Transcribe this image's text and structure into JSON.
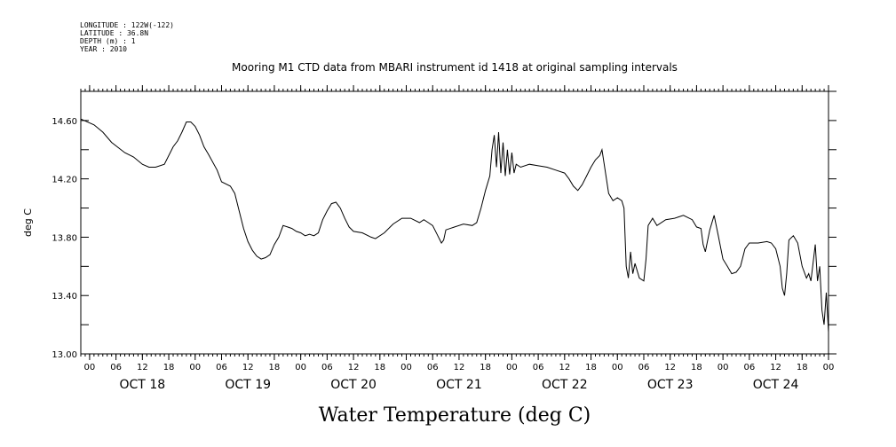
{
  "metadata": {
    "longitude": "LONGITUDE : 122W(-122)",
    "latitude": "LATITUDE : 36.8N",
    "depth": "DEPTH (m) : 1",
    "year": "YEAR : 2010"
  },
  "chart_data": {
    "type": "line",
    "title": "Mooring M1 CTD data from MBARI instrument id 1418 at original sampling intervals",
    "xlabel": "Water Temperature (deg C)",
    "ylabel": "deg C",
    "x_unit": "hours from OCT 18 00:00",
    "xlim": [
      -2,
      168
    ],
    "ylim": [
      13.0,
      14.8
    ],
    "y_ticks": [
      "13.00",
      "13.40",
      "13.80",
      "14.20",
      "14.60"
    ],
    "y_tick_values": [
      13.0,
      13.4,
      13.8,
      14.2,
      14.6
    ],
    "hour_tick_labels": [
      "00",
      "06",
      "12",
      "18"
    ],
    "day_labels": [
      "OCT 18",
      "OCT 19",
      "OCT 20",
      "OCT 21",
      "OCT 22",
      "OCT 23",
      "OCT 24"
    ],
    "grid": false,
    "series": [
      {
        "values": [
          [
            -2,
            14.61
          ],
          [
            1,
            14.57
          ],
          [
            3,
            14.52
          ],
          [
            5,
            14.45
          ],
          [
            8,
            14.38
          ],
          [
            10,
            14.35
          ],
          [
            12,
            14.3
          ],
          [
            13.5,
            14.28
          ],
          [
            15,
            14.28
          ],
          [
            17,
            14.3
          ],
          [
            19,
            14.42
          ],
          [
            20,
            14.46
          ],
          [
            21,
            14.52
          ],
          [
            22,
            14.59
          ],
          [
            23,
            14.59
          ],
          [
            24,
            14.56
          ],
          [
            25,
            14.5
          ],
          [
            26,
            14.42
          ],
          [
            27,
            14.37
          ],
          [
            29,
            14.26
          ],
          [
            30,
            14.18
          ],
          [
            32,
            14.15
          ],
          [
            33,
            14.1
          ],
          [
            34,
            13.98
          ],
          [
            35,
            13.86
          ],
          [
            36,
            13.77
          ],
          [
            37,
            13.71
          ],
          [
            38,
            13.67
          ],
          [
            39,
            13.65
          ],
          [
            40,
            13.66
          ],
          [
            41,
            13.68
          ],
          [
            42,
            13.75
          ],
          [
            43,
            13.8
          ],
          [
            44,
            13.88
          ],
          [
            45,
            13.87
          ],
          [
            46,
            13.86
          ],
          [
            47,
            13.84
          ],
          [
            48,
            13.83
          ],
          [
            49,
            13.81
          ],
          [
            50,
            13.82
          ],
          [
            51,
            13.81
          ],
          [
            52,
            13.83
          ],
          [
            53,
            13.92
          ],
          [
            54,
            13.98
          ],
          [
            55,
            14.03
          ],
          [
            56,
            14.04
          ],
          [
            57,
            14.0
          ],
          [
            58,
            13.93
          ],
          [
            59,
            13.87
          ],
          [
            60,
            13.84
          ],
          [
            62,
            13.83
          ],
          [
            64,
            13.8
          ],
          [
            65,
            13.79
          ],
          [
            67,
            13.83
          ],
          [
            69,
            13.89
          ],
          [
            71,
            13.93
          ],
          [
            73,
            13.93
          ],
          [
            75,
            13.9
          ],
          [
            76,
            13.92
          ],
          [
            77,
            13.9
          ],
          [
            78,
            13.88
          ],
          [
            79,
            13.82
          ],
          [
            80,
            13.76
          ],
          [
            80.5,
            13.78
          ],
          [
            81,
            13.85
          ],
          [
            83,
            13.87
          ],
          [
            85,
            13.89
          ],
          [
            87,
            13.88
          ],
          [
            88,
            13.9
          ],
          [
            89,
            14.0
          ],
          [
            90,
            14.12
          ],
          [
            91,
            14.22
          ],
          [
            91.5,
            14.4
          ],
          [
            92,
            14.5
          ],
          [
            92.5,
            14.28
          ],
          [
            93,
            14.52
          ],
          [
            93.5,
            14.24
          ],
          [
            94,
            14.45
          ],
          [
            94.5,
            14.22
          ],
          [
            95,
            14.4
          ],
          [
            95.5,
            14.23
          ],
          [
            96,
            14.38
          ],
          [
            96.5,
            14.24
          ],
          [
            97,
            14.3
          ],
          [
            98,
            14.28
          ],
          [
            100,
            14.3
          ],
          [
            102,
            14.29
          ],
          [
            104,
            14.28
          ],
          [
            106,
            14.26
          ],
          [
            108,
            14.24
          ],
          [
            109,
            14.2
          ],
          [
            110,
            14.15
          ],
          [
            111,
            14.12
          ],
          [
            112,
            14.16
          ],
          [
            113,
            14.22
          ],
          [
            114,
            14.28
          ],
          [
            115,
            14.33
          ],
          [
            116,
            14.36
          ],
          [
            116.5,
            14.4
          ],
          [
            117,
            14.3
          ],
          [
            118,
            14.1
          ],
          [
            119,
            14.05
          ],
          [
            120,
            14.07
          ],
          [
            121,
            14.05
          ],
          [
            121.5,
            14.0
          ],
          [
            122,
            13.6
          ],
          [
            122.5,
            13.52
          ],
          [
            123,
            13.7
          ],
          [
            123.5,
            13.55
          ],
          [
            124,
            13.62
          ],
          [
            125,
            13.52
          ],
          [
            126,
            13.5
          ],
          [
            126.5,
            13.65
          ],
          [
            127,
            13.88
          ],
          [
            128,
            13.93
          ],
          [
            129,
            13.88
          ],
          [
            131,
            13.92
          ],
          [
            133,
            13.93
          ],
          [
            135,
            13.95
          ],
          [
            137,
            13.92
          ],
          [
            138,
            13.87
          ],
          [
            139,
            13.86
          ],
          [
            139.5,
            13.75
          ],
          [
            140,
            13.7
          ],
          [
            141,
            13.85
          ],
          [
            142,
            13.95
          ],
          [
            143,
            13.8
          ],
          [
            144,
            13.65
          ],
          [
            145,
            13.6
          ],
          [
            146,
            13.55
          ],
          [
            147,
            13.56
          ],
          [
            148,
            13.6
          ],
          [
            149,
            13.72
          ],
          [
            150,
            13.76
          ],
          [
            152,
            13.76
          ],
          [
            154,
            13.77
          ],
          [
            155,
            13.76
          ],
          [
            156,
            13.72
          ],
          [
            157,
            13.6
          ],
          [
            157.5,
            13.45
          ],
          [
            158,
            13.4
          ],
          [
            158.5,
            13.55
          ],
          [
            159,
            13.78
          ],
          [
            160,
            13.81
          ],
          [
            161,
            13.76
          ],
          [
            162,
            13.6
          ],
          [
            163,
            13.52
          ],
          [
            163.5,
            13.55
          ],
          [
            164,
            13.5
          ],
          [
            165,
            13.75
          ],
          [
            165.5,
            13.5
          ],
          [
            166,
            13.6
          ],
          [
            166.5,
            13.3
          ],
          [
            167,
            13.2
          ],
          [
            167.5,
            13.42
          ],
          [
            168,
            13.15
          ]
        ]
      }
    ]
  }
}
